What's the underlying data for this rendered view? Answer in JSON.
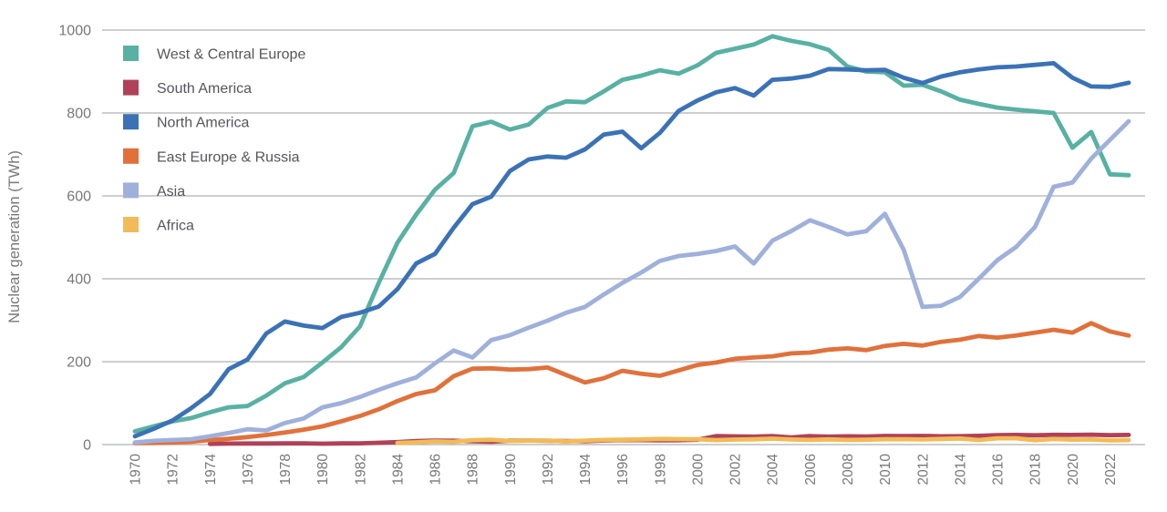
{
  "colors": {
    "background": "#FFFFFF",
    "grid": "#AFB0B2",
    "axis_text": "#77787B",
    "legend_text": "#55565A"
  },
  "chart_data": {
    "type": "line",
    "title": "",
    "xlabel": "",
    "ylabel": "Nuclear generation (TWh)",
    "x_range": [
      1970,
      2023
    ],
    "ylim": [
      0,
      1000
    ],
    "grid": "horizontal",
    "legend_position": "top-left",
    "y_tick_labels": [
      0,
      200,
      400,
      600,
      800,
      1000
    ],
    "x_tick_labels": [
      1970,
      1972,
      1974,
      1976,
      1978,
      1980,
      1982,
      1984,
      1986,
      1988,
      1990,
      1992,
      1994,
      1996,
      1998,
      2000,
      2002,
      2004,
      2006,
      2008,
      2010,
      2012,
      2014,
      2016,
      2018,
      2020,
      2022
    ],
    "years": [
      1970,
      1971,
      1972,
      1973,
      1974,
      1975,
      1976,
      1977,
      1978,
      1979,
      1980,
      1981,
      1982,
      1983,
      1984,
      1985,
      1986,
      1987,
      1988,
      1989,
      1990,
      1991,
      1992,
      1993,
      1994,
      1995,
      1996,
      1997,
      1998,
      1999,
      2000,
      2001,
      2002,
      2003,
      2004,
      2005,
      2006,
      2007,
      2008,
      2009,
      2010,
      2011,
      2012,
      2013,
      2014,
      2015,
      2016,
      2017,
      2018,
      2019,
      2020,
      2021,
      2022,
      2023
    ],
    "series": [
      {
        "id": "west-central-europe",
        "name": "West & Central Europe",
        "color": "#58B1A2",
        "values": [
          32,
          44,
          56,
          64,
          78,
          90,
          93,
          118,
          148,
          163,
          198,
          235,
          285,
          390,
          487,
          555,
          615,
          655,
          768,
          779,
          760,
          772,
          812,
          828,
          826,
          852,
          880,
          890,
          903,
          895,
          915,
          945,
          955,
          965,
          985,
          974,
          966,
          952,
          912,
          900,
          898,
          866,
          868,
          852,
          832,
          822,
          813,
          808,
          804,
          800,
          716,
          754,
          652,
          650
        ]
      },
      {
        "id": "south-america",
        "name": "South America",
        "color": "#B04158",
        "values": [
          null,
          null,
          null,
          null,
          1.8,
          2.4,
          2.7,
          2.6,
          2.8,
          3.0,
          2.3,
          2.8,
          3.1,
          4.5,
          6.0,
          8.4,
          9.4,
          9.3,
          8.0,
          7.0,
          9.5,
          9.6,
          9.0,
          8.6,
          8.2,
          9.9,
          10.9,
          10.7,
          10.3,
          10.5,
          11.6,
          20.5,
          19.8,
          19.1,
          20.5,
          17.3,
          20.4,
          19.2,
          20.1,
          19.5,
          20.9,
          20.4,
          20.9,
          20.1,
          20.3,
          21.2,
          22.8,
          23.3,
          22.4,
          23.5,
          23.2,
          23.9,
          22.7,
          23.4
        ]
      },
      {
        "id": "north-america",
        "name": "North America",
        "color": "#3B72B6",
        "values": [
          20,
          38,
          58,
          88,
          122,
          182,
          205,
          268,
          297,
          287,
          281,
          308,
          318,
          333,
          375,
          437,
          460,
          523,
          580,
          598,
          660,
          688,
          695,
          692,
          712,
          748,
          755,
          715,
          752,
          805,
          830,
          850,
          860,
          842,
          880,
          883,
          890,
          906,
          905,
          903,
          904,
          885,
          872,
          888,
          898,
          905,
          910,
          912,
          916,
          920,
          885,
          864,
          863,
          873
        ]
      },
      {
        "id": "east-europe-russia",
        "name": "East Europe & Russia",
        "color": "#E1713A",
        "values": [
          3.5,
          4,
          5,
          7,
          11,
          14,
          18,
          23,
          29,
          36,
          44,
          56,
          69,
          85,
          105,
          122,
          131,
          165,
          183,
          184,
          181,
          182,
          186,
          168,
          150,
          160,
          178,
          171,
          166,
          179,
          192,
          198,
          207,
          210,
          213,
          220,
          222,
          229,
          232,
          228,
          238,
          243,
          239,
          248,
          253,
          262,
          258,
          263,
          270,
          277,
          270,
          293,
          273,
          263
        ]
      },
      {
        "id": "asia",
        "name": "Asia",
        "color": "#9FB0DB",
        "values": [
          5,
          9,
          11,
          13,
          20,
          28,
          37,
          34,
          52,
          63,
          90,
          100,
          115,
          132,
          148,
          162,
          196,
          227,
          210,
          252,
          264,
          282,
          299,
          318,
          332,
          362,
          390,
          415,
          443,
          455,
          460,
          467,
          478,
          437,
          492,
          515,
          541,
          525,
          507,
          515,
          557,
          470,
          332,
          335,
          356,
          400,
          445,
          477,
          525,
          622,
          632,
          690,
          735,
          780
        ]
      },
      {
        "id": "africa",
        "name": "Africa",
        "color": "#F2BB57",
        "values": [
          null,
          null,
          null,
          null,
          null,
          null,
          null,
          null,
          null,
          null,
          null,
          null,
          null,
          null,
          3.9,
          5.5,
          7.6,
          6.6,
          10.7,
          11.6,
          8.8,
          9.5,
          9.8,
          7.3,
          9.7,
          11.3,
          11.8,
          12.6,
          13.6,
          13.1,
          13.0,
          10.7,
          12.0,
          12.7,
          14.3,
          12.2,
          11.3,
          12.6,
          11.3,
          11.6,
          12.9,
          12.9,
          12.4,
          13.6,
          14.8,
          11.0,
          15.2,
          15.1,
          10.6,
          13.6,
          11.8,
          12.2,
          10.1,
          10.7
        ]
      }
    ]
  }
}
